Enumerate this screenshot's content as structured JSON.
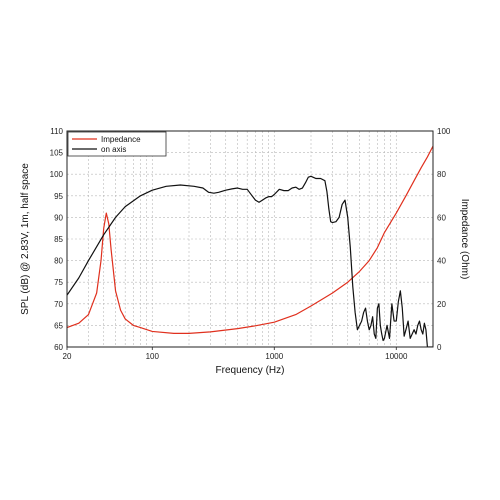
{
  "chart_data": {
    "type": "line",
    "xlabel": "Frequency (Hz)",
    "ylabel_left": "SPL (dB) @ 2.83V, 1m, half space",
    "ylabel_right": "Impedance (Ohm)",
    "x_scale": "log",
    "xlim": [
      20,
      20000
    ],
    "ylim_left": [
      60,
      110
    ],
    "ylim_right": [
      0,
      100
    ],
    "x_ticks": [
      {
        "value": 20,
        "label": "20"
      },
      {
        "value": 100,
        "label": "100"
      },
      {
        "value": 1000,
        "label": "1000"
      },
      {
        "value": 10000,
        "label": "10000"
      }
    ],
    "y_ticks_left": [
      "60",
      "65",
      "70",
      "75",
      "80",
      "85",
      "90",
      "95",
      "100",
      "105",
      "110"
    ],
    "y_ticks_right": [
      "0",
      "20",
      "40",
      "60",
      "80",
      "100"
    ],
    "grid": true,
    "legend_position": "top-left",
    "series": [
      {
        "name": "Impedance",
        "axis": "right",
        "color": "#e0301e",
        "x": [
          20,
          25,
          30,
          35,
          38,
          40,
          42,
          44,
          46,
          50,
          55,
          60,
          70,
          80,
          100,
          150,
          200,
          300,
          500,
          700,
          1000,
          1500,
          2000,
          3000,
          4000,
          5000,
          6000,
          7000,
          8000,
          10000,
          12000,
          14000,
          16000,
          18000,
          20000
        ],
        "y": [
          9,
          11,
          15,
          25,
          40,
          55,
          62,
          57,
          45,
          26,
          17,
          13,
          10,
          9,
          7.2,
          6.3,
          6.3,
          7,
          8.5,
          9.8,
          11.5,
          15,
          19,
          25,
          30,
          35,
          40,
          46,
          53,
          62,
          70,
          77,
          83,
          88,
          93
        ]
      },
      {
        "name": "on axis",
        "axis": "left",
        "color": "#111111",
        "x": [
          20,
          25,
          30,
          40,
          50,
          60,
          80,
          100,
          130,
          170,
          220,
          260,
          290,
          320,
          350,
          400,
          450,
          500,
          550,
          600,
          650,
          700,
          750,
          800,
          850,
          900,
          950,
          1000,
          1100,
          1200,
          1300,
          1400,
          1500,
          1600,
          1700,
          1800,
          1900,
          2000,
          2200,
          2400,
          2600,
          2700,
          2800,
          2900,
          3000,
          3200,
          3400,
          3600,
          3800,
          4000,
          4200,
          4400,
          4600,
          4800,
          5000,
          5200,
          5400,
          5600,
          5800,
          6000,
          6200,
          6400,
          6600,
          6800,
          7000,
          7200,
          7400,
          7600,
          7800,
          8000,
          8400,
          8800,
          9200,
          9600,
          10000,
          10400,
          10800,
          11200,
          11600,
          12000,
          12500,
          13000,
          13500,
          14000,
          14500,
          15000,
          15500,
          16000,
          16500,
          17000,
          17500,
          18000,
          18500,
          19000,
          19500,
          20000
        ],
        "y": [
          72,
          76,
          80,
          86,
          90,
          92.5,
          95,
          96.3,
          97.2,
          97.5,
          97.2,
          96.8,
          95.8,
          95.6,
          95.8,
          96.3,
          96.6,
          96.8,
          96.5,
          96.5,
          95.2,
          94,
          93.5,
          94,
          94.5,
          94.8,
          94.8,
          95.3,
          96.5,
          96.2,
          96.2,
          96.8,
          97,
          96.5,
          96.8,
          98,
          99.3,
          99.5,
          99,
          99,
          98.5,
          96,
          92,
          89,
          88.8,
          89,
          90,
          93,
          94,
          90,
          83,
          74,
          68,
          64,
          65,
          66,
          68,
          69,
          66,
          64,
          65,
          67,
          63,
          62,
          69,
          70,
          65,
          63,
          61.5,
          62,
          65,
          62,
          70,
          66,
          66,
          70.5,
          73,
          69,
          62.5,
          64,
          66,
          62,
          63,
          64,
          63,
          65,
          66,
          64,
          63,
          65.5,
          64,
          60,
          60,
          60,
          60,
          60
        ]
      }
    ]
  }
}
